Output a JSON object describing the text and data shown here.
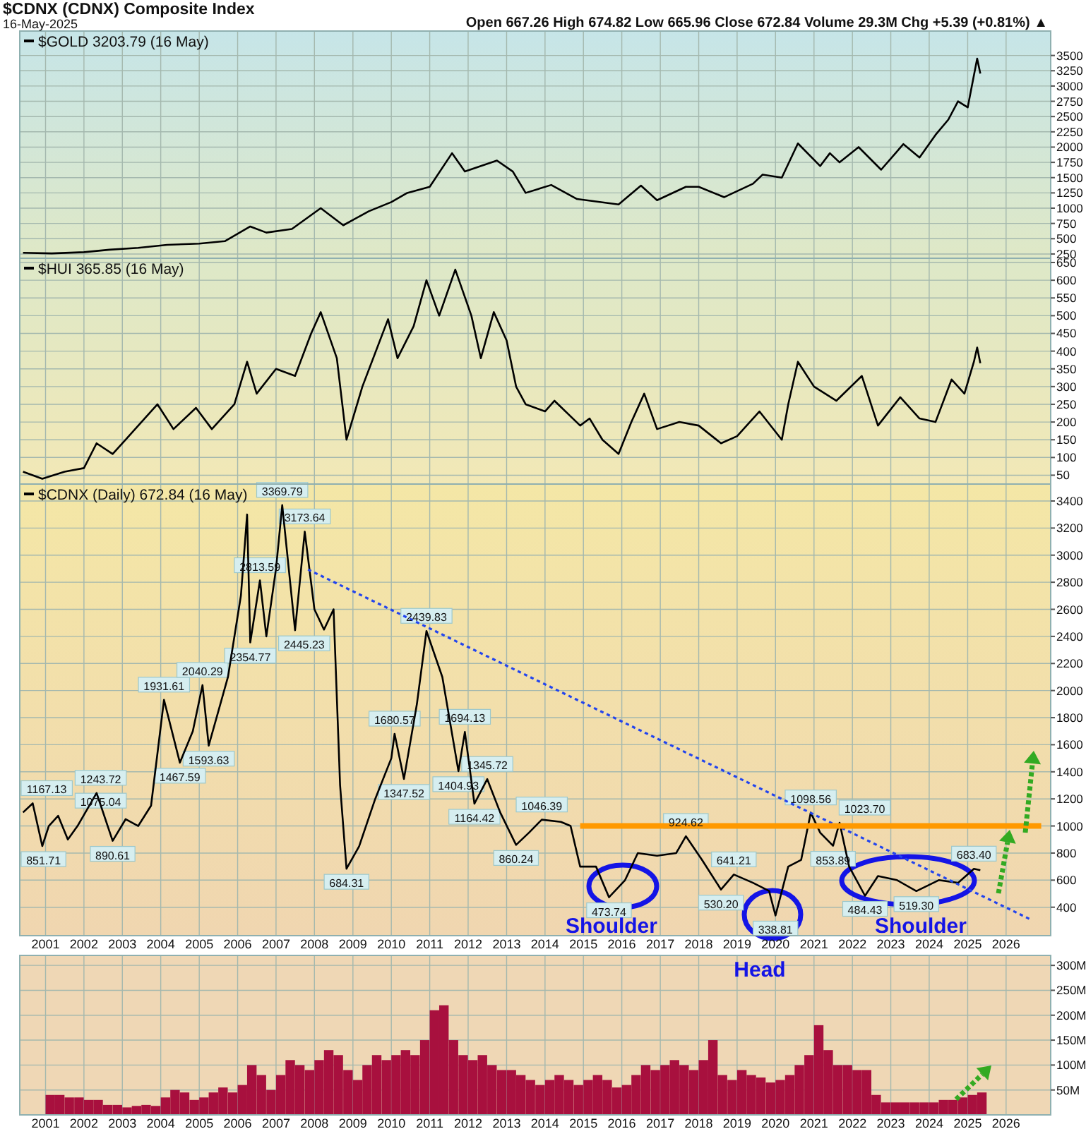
{
  "chart_data": [
    {
      "type": "line",
      "title": "$CDNX (CDNX) Composite Index",
      "subtitle": "16-May-2025",
      "annotations": [
        "Open 667.26  High 674.82  Low 665.96  Close 672.84  Volume 29.3M  Chg +5.39 (+0.81%) ▲"
      ],
      "legend": "top left",
      "grid": true,
      "tick_labels": "y",
      "xlim": [
        "2000-05",
        "2027-03"
      ],
      "xticks": [
        "2001",
        "2002",
        "2003",
        "2004",
        "2005",
        "2006",
        "2007",
        "2008",
        "2009",
        "2010",
        "2011",
        "2012",
        "2013",
        "2014",
        "2015",
        "2016",
        "2017",
        "2018",
        "2019",
        "2020",
        "2021",
        "2022",
        "2023",
        "2024",
        "2025",
        "2026"
      ],
      "ylim": [
        180,
        3900
      ],
      "yticks": [
        250,
        500,
        750,
        1000,
        1250,
        1500,
        1750,
        2000,
        2250,
        2500,
        2750,
        3000,
        3250,
        3500
      ],
      "series": [
        {
          "name": "$GOLD 3203.79 (16 May)",
          "color": "#000000",
          "x": [
            "2000-06",
            "2001-03",
            "2002-01",
            "2002-09",
            "2003-06",
            "2004-03",
            "2005-01",
            "2005-09",
            "2006-05",
            "2006-10",
            "2007-06",
            "2008-03",
            "2008-10",
            "2009-06",
            "2010-01",
            "2010-06",
            "2011-01",
            "2011-08",
            "2011-12",
            "2012-10",
            "2013-03",
            "2013-07",
            "2014-03",
            "2014-11",
            "2015-12",
            "2016-07",
            "2016-12",
            "2017-09",
            "2018-01",
            "2018-09",
            "2019-06",
            "2019-09",
            "2020-03",
            "2020-08",
            "2021-03",
            "2021-06",
            "2021-09",
            "2022-03",
            "2022-10",
            "2023-05",
            "2023-10",
            "2024-03",
            "2024-07",
            "2024-10",
            "2025-01",
            "2025-04",
            "2025-05"
          ],
          "values": [
            270,
            260,
            280,
            320,
            350,
            400,
            420,
            460,
            700,
            600,
            660,
            1000,
            720,
            950,
            1100,
            1250,
            1350,
            1900,
            1600,
            1780,
            1600,
            1250,
            1380,
            1150,
            1060,
            1370,
            1130,
            1350,
            1350,
            1180,
            1400,
            1550,
            1500,
            2060,
            1690,
            1900,
            1750,
            2000,
            1630,
            2050,
            1830,
            2200,
            2450,
            2750,
            2650,
            3450,
            3203.79
          ]
        }
      ]
    },
    {
      "type": "line",
      "legend": "top left",
      "grid": true,
      "tick_labels": "y",
      "xlim": [
        "2000-05",
        "2027-03"
      ],
      "xticks": [
        "2001",
        "2002",
        "2003",
        "2004",
        "2005",
        "2006",
        "2007",
        "2008",
        "2009",
        "2010",
        "2011",
        "2012",
        "2013",
        "2014",
        "2015",
        "2016",
        "2017",
        "2018",
        "2019",
        "2020",
        "2021",
        "2022",
        "2023",
        "2024",
        "2025",
        "2026"
      ],
      "ylim": [
        25,
        662
      ],
      "yticks": [
        50,
        100,
        150,
        200,
        250,
        300,
        350,
        400,
        450,
        500,
        550,
        600,
        650
      ],
      "series": [
        {
          "name": "$HUI 365.85 (16 May)",
          "color": "#000000",
          "x": [
            "2000-06",
            "2000-12",
            "2001-07",
            "2002-01",
            "2002-05",
            "2002-10",
            "2003-02",
            "2003-12",
            "2004-05",
            "2004-12",
            "2005-05",
            "2005-12",
            "2006-04",
            "2006-07",
            "2007-01",
            "2007-07",
            "2007-12",
            "2008-03",
            "2008-08",
            "2008-11",
            "2009-04",
            "2009-12",
            "2010-03",
            "2010-08",
            "2010-12",
            "2011-04",
            "2011-09",
            "2012-02",
            "2012-05",
            "2012-09",
            "2013-01",
            "2013-04",
            "2013-07",
            "2014-01",
            "2014-04",
            "2014-12",
            "2015-03",
            "2015-07",
            "2015-12",
            "2016-04",
            "2016-08",
            "2016-12",
            "2017-07",
            "2018-01",
            "2018-08",
            "2019-01",
            "2019-08",
            "2020-03",
            "2020-05",
            "2020-08",
            "2021-01",
            "2021-08",
            "2022-04",
            "2022-09",
            "2023-04",
            "2023-10",
            "2024-03",
            "2024-08",
            "2024-12",
            "2025-03",
            "2025-04",
            "2025-05"
          ],
          "values": [
            60,
            40,
            60,
            70,
            140,
            110,
            150,
            250,
            180,
            240,
            180,
            250,
            370,
            280,
            350,
            330,
            450,
            510,
            380,
            150,
            300,
            490,
            380,
            470,
            600,
            500,
            630,
            500,
            380,
            510,
            430,
            300,
            250,
            230,
            260,
            190,
            210,
            150,
            110,
            200,
            280,
            180,
            200,
            190,
            140,
            160,
            230,
            150,
            250,
            370,
            300,
            260,
            330,
            190,
            270,
            210,
            200,
            320,
            280,
            370,
            410,
            365.85
          ]
        }
      ]
    },
    {
      "type": "line",
      "legend": "top left",
      "grid": true,
      "xlim": [
        "2000-05",
        "2027-03"
      ],
      "xticks": [
        "2001",
        "2002",
        "2003",
        "2004",
        "2005",
        "2006",
        "2007",
        "2008",
        "2009",
        "2010",
        "2011",
        "2012",
        "2013",
        "2014",
        "2015",
        "2016",
        "2017",
        "2018",
        "2019",
        "2020",
        "2021",
        "2022",
        "2023",
        "2024",
        "2025",
        "2026"
      ],
      "ylim": [
        190,
        3525
      ],
      "yticks": [
        400,
        600,
        800,
        1000,
        1200,
        1400,
        1600,
        1800,
        2000,
        2200,
        2400,
        2600,
        2800,
        3000,
        3200,
        3400
      ],
      "series": [
        {
          "name": "$CDNX (Daily) 672.84 (16 May)",
          "color": "#000000",
          "line_style": "solid",
          "x": [
            "2000-06",
            "2000-09",
            "2000-12",
            "2001-02",
            "2001-05",
            "2001-08",
            "2001-11",
            "2002-05",
            "2002-10",
            "2003-02",
            "2003-06",
            "2003-10",
            "2004-02",
            "2004-07",
            "2004-11",
            "2005-02",
            "2005-04",
            "2005-10",
            "2006-02",
            "2006-04",
            "2006-05",
            "2006-08",
            "2006-10",
            "2007-01",
            "2007-03",
            "2007-07",
            "2007-10",
            "2008-01",
            "2008-04",
            "2008-07",
            "2008-09",
            "2008-11",
            "2009-03",
            "2009-08",
            "2010-01",
            "2010-02",
            "2010-05",
            "2010-09",
            "2010-12",
            "2011-05",
            "2011-10",
            "2011-12",
            "2012-03",
            "2012-07",
            "2012-11",
            "2013-04",
            "2013-08",
            "2013-12",
            "2014-06",
            "2014-09",
            "2014-12",
            "2015-05",
            "2015-09",
            "2016-02",
            "2016-06",
            "2016-12",
            "2017-06",
            "2017-09",
            "2018-02",
            "2018-08",
            "2018-12",
            "2019-06",
            "2019-11",
            "2020-01",
            "2020-05",
            "2020-09",
            "2020-12",
            "2021-03",
            "2021-07",
            "2021-09",
            "2021-12",
            "2022-05",
            "2022-09",
            "2023-03",
            "2023-09",
            "2024-04",
            "2024-10",
            "2025-03",
            "2025-05"
          ],
          "values": [
            1100,
            1167.13,
            851.71,
            1000,
            1075.04,
            900,
            1000,
            1243.72,
            890.61,
            1050,
            1000,
            1150,
            1931.61,
            1467.59,
            1700,
            2040.29,
            1593.63,
            2100,
            2700,
            3300,
            2354.77,
            2813.59,
            2400,
            2900,
            3369.79,
            2445.23,
            3173.64,
            2600,
            2450,
            2600,
            1300,
            684.31,
            850,
            1200,
            1500,
            1680.57,
            1347.52,
            1900,
            2439.83,
            2100,
            1404.93,
            1694.13,
            1164.42,
            1345.72,
            1100,
            860.24,
            950,
            1046.39,
            1030,
            1000,
            700,
            700,
            473.74,
            600,
            800,
            780,
            800,
            924.62,
            750,
            530.2,
            641.21,
            580,
            520,
            338.81,
            700,
            750,
            1098.56,
            950,
            853.89,
            1023.7,
            700,
            484.43,
            630,
            600,
            519.3,
            600,
            580,
            683.4,
            672.84
          ]
        },
        {
          "color": "#2244ee",
          "line_style": "dotted",
          "x": [
            "2007-11",
            "2026-09"
          ],
          "values": [
            2894,
            306
          ]
        },
        {
          "color": "#ff9900",
          "line_style": "solid",
          "x": [
            "2014-12",
            "2026-12"
          ],
          "values": [
            1000,
            1000
          ]
        }
      ],
      "annotations": [
        {
          "text": "1167.13",
          "x": "2000-09",
          "y": 1167.13
        },
        {
          "text": "851.71",
          "x": "2000-12",
          "y": 851.71
        },
        {
          "text": "1075.04",
          "x": "2001-05",
          "y": 1075.04
        },
        {
          "text": "1243.72",
          "x": "2002-05",
          "y": 1243.72
        },
        {
          "text": "890.61",
          "x": "2002-10",
          "y": 890.61
        },
        {
          "text": "1931.61",
          "x": "2004-02",
          "y": 1931.61
        },
        {
          "text": "1467.59",
          "x": "2004-07",
          "y": 1467.59
        },
        {
          "text": "2040.29",
          "x": "2005-02",
          "y": 2040.29
        },
        {
          "text": "1593.63",
          "x": "2005-04",
          "y": 1593.63
        },
        {
          "text": "2354.77",
          "x": "2006-05",
          "y": 2354.77
        },
        {
          "text": "2813.59",
          "x": "2006-08",
          "y": 2813.59
        },
        {
          "text": "3369.79",
          "x": "2007-03",
          "y": 3369.79
        },
        {
          "text": "2445.23",
          "x": "2007-07",
          "y": 2445.23
        },
        {
          "text": "3173.64",
          "x": "2007-10",
          "y": 3173.64
        },
        {
          "text": "684.31",
          "x": "2008-11",
          "y": 684.31
        },
        {
          "text": "1680.57",
          "x": "2010-02",
          "y": 1680.57
        },
        {
          "text": "1347.52",
          "x": "2010-05",
          "y": 1347.52
        },
        {
          "text": "2439.83",
          "x": "2010-12",
          "y": 2439.83
        },
        {
          "text": "1404.93",
          "x": "2011-10",
          "y": 1404.93
        },
        {
          "text": "1694.13",
          "x": "2011-12",
          "y": 1694.13
        },
        {
          "text": "1164.42",
          "x": "2012-03",
          "y": 1164.42
        },
        {
          "text": "1345.72",
          "x": "2012-07",
          "y": 1345.72
        },
        {
          "text": "860.24",
          "x": "2013-04",
          "y": 860.24
        },
        {
          "text": "1046.39",
          "x": "2013-12",
          "y": 1046.39
        },
        {
          "text": "473.74",
          "x": "2015-09",
          "y": 473.74
        },
        {
          "text": "924.62",
          "x": "2017-09",
          "y": 924.62
        },
        {
          "text": "530.20",
          "x": "2018-08",
          "y": 530.2
        },
        {
          "text": "641.21",
          "x": "2018-12",
          "y": 641.21
        },
        {
          "text": "338.81",
          "x": "2020-01",
          "y": 338.81
        },
        {
          "text": "1098.56",
          "x": "2020-12",
          "y": 1098.56
        },
        {
          "text": "853.89",
          "x": "2021-07",
          "y": 853.89
        },
        {
          "text": "1023.70",
          "x": "2021-09",
          "y": 1023.7
        },
        {
          "text": "484.43",
          "x": "2022-05",
          "y": 484.43
        },
        {
          "text": "519.30",
          "x": "2023-09",
          "y": 519.3
        },
        {
          "text": "683.40",
          "x": "2025-03",
          "y": 683.4
        },
        "Shoulder",
        "Head",
        "Shoulder"
      ]
    },
    {
      "type": "bar",
      "color": "#a8103e",
      "grid": true,
      "xlim": [
        "2000-05",
        "2027-03"
      ],
      "xticks": [
        "2001",
        "2002",
        "2003",
        "2004",
        "2005",
        "2006",
        "2007",
        "2008",
        "2009",
        "2010",
        "2011",
        "2012",
        "2013",
        "2014",
        "2015",
        "2016",
        "2017",
        "2018",
        "2019",
        "2020",
        "2021",
        "2022",
        "2023",
        "2024",
        "2025",
        "2026"
      ],
      "ylim": [
        0,
        320000000
      ],
      "yticks": [
        {
          "value": 50000000,
          "label": "50M"
        },
        {
          "value": 100000000,
          "label": "100M"
        },
        {
          "value": 150000000,
          "label": "150M"
        },
        {
          "value": 200000000,
          "label": "200M"
        },
        {
          "value": 250000000,
          "label": "250M"
        },
        {
          "value": 300000000,
          "label": "300M"
        }
      ],
      "x": [
        "2001-01",
        "2001-04",
        "2001-07",
        "2001-10",
        "2002-01",
        "2002-04",
        "2002-07",
        "2002-10",
        "2003-01",
        "2003-04",
        "2003-07",
        "2003-10",
        "2004-01",
        "2004-04",
        "2004-07",
        "2004-10",
        "2005-01",
        "2005-04",
        "2005-07",
        "2005-10",
        "2006-01",
        "2006-04",
        "2006-07",
        "2006-10",
        "2007-01",
        "2007-04",
        "2007-07",
        "2007-10",
        "2008-01",
        "2008-04",
        "2008-07",
        "2008-10",
        "2009-01",
        "2009-04",
        "2009-07",
        "2009-10",
        "2010-01",
        "2010-04",
        "2010-07",
        "2010-10",
        "2011-01",
        "2011-04",
        "2011-07",
        "2011-10",
        "2012-01",
        "2012-04",
        "2012-07",
        "2012-10",
        "2013-01",
        "2013-04",
        "2013-07",
        "2013-10",
        "2014-01",
        "2014-04",
        "2014-07",
        "2014-10",
        "2015-01",
        "2015-04",
        "2015-07",
        "2015-10",
        "2016-01",
        "2016-04",
        "2016-07",
        "2016-10",
        "2017-01",
        "2017-04",
        "2017-07",
        "2017-10",
        "2018-01",
        "2018-04",
        "2018-07",
        "2018-10",
        "2019-01",
        "2019-04",
        "2019-07",
        "2019-10",
        "2020-01",
        "2020-04",
        "2020-07",
        "2020-10",
        "2021-01",
        "2021-04",
        "2021-07",
        "2021-10",
        "2022-01",
        "2022-04",
        "2022-07",
        "2022-10",
        "2023-01",
        "2023-04",
        "2023-07",
        "2023-10",
        "2024-01",
        "2024-04",
        "2024-07",
        "2024-10",
        "2025-01",
        "2025-04"
      ],
      "values": [
        40000000,
        40000000,
        35000000,
        35000000,
        30000000,
        30000000,
        20000000,
        20000000,
        15000000,
        18000000,
        20000000,
        18000000,
        35000000,
        50000000,
        45000000,
        30000000,
        35000000,
        45000000,
        55000000,
        45000000,
        60000000,
        100000000,
        80000000,
        50000000,
        80000000,
        110000000,
        100000000,
        90000000,
        110000000,
        130000000,
        120000000,
        90000000,
        70000000,
        100000000,
        120000000,
        110000000,
        120000000,
        130000000,
        120000000,
        150000000,
        210000000,
        220000000,
        150000000,
        120000000,
        110000000,
        120000000,
        100000000,
        90000000,
        90000000,
        80000000,
        70000000,
        60000000,
        70000000,
        80000000,
        70000000,
        60000000,
        70000000,
        80000000,
        70000000,
        55000000,
        60000000,
        80000000,
        100000000,
        90000000,
        100000000,
        110000000,
        100000000,
        90000000,
        110000000,
        150000000,
        80000000,
        70000000,
        90000000,
        80000000,
        75000000,
        65000000,
        70000000,
        80000000,
        100000000,
        120000000,
        180000000,
        130000000,
        100000000,
        100000000,
        90000000,
        90000000,
        40000000,
        25000000,
        25000000,
        25000000,
        25000000,
        25000000,
        25000000,
        30000000,
        30000000,
        35000000,
        40000000,
        45000000
      ]
    }
  ]
}
